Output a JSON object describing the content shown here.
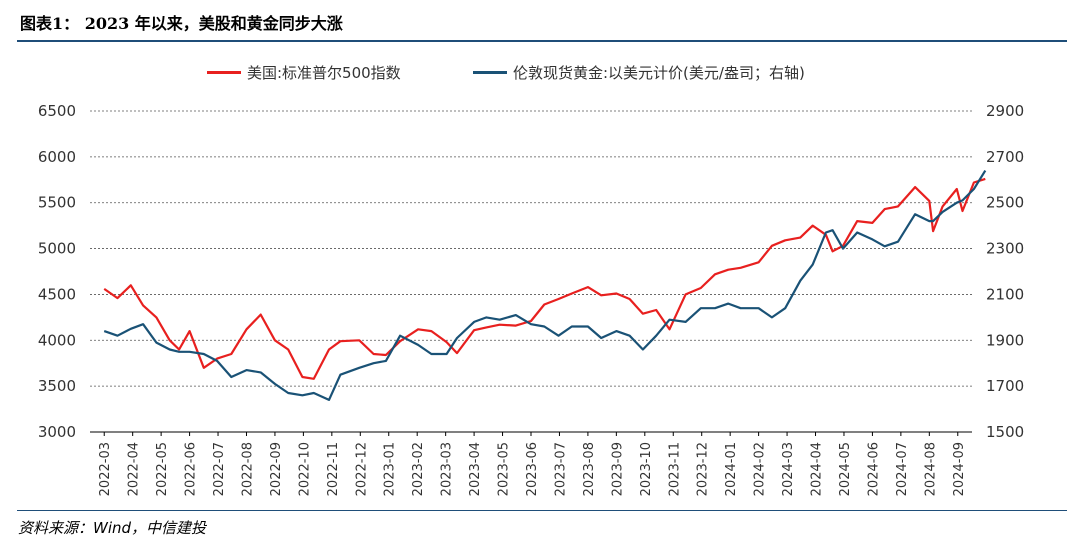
{
  "title": "图表1：  2023 年以来，美股和黄金同步大涨",
  "source": "资料来源：Wind，中信建投",
  "colors": {
    "spx": "#e8201f",
    "gold": "#1a5276",
    "rule": "#1f4e79"
  },
  "chart_data": {
    "type": "line",
    "x_ticks": [
      "2022-03",
      "2022-04",
      "2022-05",
      "2022-06",
      "2022-07",
      "2022-08",
      "2022-09",
      "2022-10",
      "2022-11",
      "2022-12",
      "2023-01",
      "2023-02",
      "2023-03",
      "2023-04",
      "2023-05",
      "2023-06",
      "2023-07",
      "2023-08",
      "2023-09",
      "2023-10",
      "2023-11",
      "2023-12",
      "2024-01",
      "2024-02",
      "2024-03",
      "2024-04",
      "2024-05",
      "2024-06",
      "2024-07",
      "2024-08",
      "2024-09"
    ],
    "ylim_left": [
      3000,
      6500
    ],
    "yticks_left": [
      "6500",
      "6000",
      "5500",
      "5000",
      "4500",
      "4000",
      "3500",
      "3000"
    ],
    "ylim_right": [
      1500,
      2900
    ],
    "yticks_right": [
      "2900",
      "2700",
      "2500",
      "2300",
      "2100",
      "1900",
      "1700",
      "1500"
    ],
    "grid": "horizontal dashed",
    "legend_position": "top",
    "series": [
      {
        "name": "美国:标准普尔500指数",
        "axis": "left",
        "x": [
          "2022-03-01",
          "2022-03-15",
          "2022-03-29",
          "2022-04-12",
          "2022-04-26",
          "2022-05-10",
          "2022-05-20",
          "2022-06-01",
          "2022-06-16",
          "2022-06-30",
          "2022-07-15",
          "2022-08-01",
          "2022-08-16",
          "2022-08-31",
          "2022-09-15",
          "2022-09-30",
          "2022-10-12",
          "2022-10-28",
          "2022-11-10",
          "2022-11-30",
          "2022-12-15",
          "2022-12-28",
          "2023-01-13",
          "2023-02-02",
          "2023-02-16",
          "2023-03-02",
          "2023-03-13",
          "2023-03-31",
          "2023-04-14",
          "2023-04-28",
          "2023-05-15",
          "2023-05-31",
          "2023-06-15",
          "2023-06-30",
          "2023-07-14",
          "2023-07-31",
          "2023-08-15",
          "2023-08-31",
          "2023-09-15",
          "2023-09-29",
          "2023-10-13",
          "2023-10-27",
          "2023-11-14",
          "2023-11-30",
          "2023-12-15",
          "2023-12-29",
          "2024-01-12",
          "2024-01-31",
          "2024-02-15",
          "2024-02-29",
          "2024-03-15",
          "2024-03-28",
          "2024-04-12",
          "2024-04-19",
          "2024-04-30",
          "2024-05-15",
          "2024-05-31",
          "2024-06-14",
          "2024-06-28",
          "2024-07-16",
          "2024-07-31",
          "2024-08-05",
          "2024-08-15",
          "2024-08-30",
          "2024-09-06",
          "2024-09-18",
          "2024-09-30"
        ],
        "values": [
          4560,
          4460,
          4600,
          4380,
          4250,
          4000,
          3900,
          4100,
          3700,
          3800,
          3850,
          4120,
          4280,
          4000,
          3900,
          3600,
          3580,
          3900,
          3990,
          4000,
          3850,
          3840,
          3990,
          4120,
          4100,
          3980,
          3860,
          4110,
          4140,
          4170,
          4160,
          4210,
          4390,
          4450,
          4510,
          4580,
          4490,
          4510,
          4450,
          4290,
          4330,
          4120,
          4500,
          4570,
          4720,
          4770,
          4790,
          4850,
          5030,
          5090,
          5120,
          5250,
          5150,
          4970,
          5030,
          5300,
          5280,
          5430,
          5460,
          5670,
          5520,
          5190,
          5460,
          5650,
          5410,
          5720,
          5760
        ]
      },
      {
        "name": "伦敦现货黄金:以美元计价(美元/盎司；右轴)",
        "axis": "right",
        "x": [
          "2022-03-01",
          "2022-03-15",
          "2022-03-29",
          "2022-04-12",
          "2022-04-26",
          "2022-05-10",
          "2022-05-20",
          "2022-06-01",
          "2022-06-16",
          "2022-06-30",
          "2022-07-15",
          "2022-08-01",
          "2022-08-16",
          "2022-08-31",
          "2022-09-15",
          "2022-09-30",
          "2022-10-12",
          "2022-10-28",
          "2022-11-10",
          "2022-11-30",
          "2022-12-15",
          "2022-12-28",
          "2023-01-13",
          "2023-02-02",
          "2023-02-16",
          "2023-03-02",
          "2023-03-13",
          "2023-03-31",
          "2023-04-14",
          "2023-04-28",
          "2023-05-15",
          "2023-05-31",
          "2023-06-15",
          "2023-06-30",
          "2023-07-14",
          "2023-07-31",
          "2023-08-15",
          "2023-08-31",
          "2023-09-15",
          "2023-09-29",
          "2023-10-13",
          "2023-10-27",
          "2023-11-14",
          "2023-11-30",
          "2023-12-15",
          "2023-12-29",
          "2024-01-12",
          "2024-01-31",
          "2024-02-15",
          "2024-02-29",
          "2024-03-15",
          "2024-03-28",
          "2024-04-12",
          "2024-04-19",
          "2024-04-30",
          "2024-05-15",
          "2024-05-31",
          "2024-06-14",
          "2024-06-28",
          "2024-07-16",
          "2024-07-31",
          "2024-08-05",
          "2024-08-15",
          "2024-08-30",
          "2024-09-06",
          "2024-09-18",
          "2024-09-30"
        ],
        "values": [
          1940,
          1920,
          1950,
          1970,
          1890,
          1860,
          1850,
          1850,
          1840,
          1810,
          1740,
          1770,
          1760,
          1710,
          1670,
          1660,
          1670,
          1640,
          1750,
          1780,
          1800,
          1810,
          1920,
          1880,
          1840,
          1840,
          1910,
          1980,
          2000,
          1990,
          2010,
          1970,
          1960,
          1920,
          1960,
          1960,
          1910,
          1940,
          1920,
          1860,
          1920,
          1990,
          1980,
          2040,
          2040,
          2060,
          2040,
          2040,
          2000,
          2040,
          2160,
          2230,
          2370,
          2380,
          2300,
          2370,
          2340,
          2310,
          2330,
          2450,
          2420,
          2420,
          2460,
          2500,
          2510,
          2560,
          2640
        ]
      }
    ]
  }
}
